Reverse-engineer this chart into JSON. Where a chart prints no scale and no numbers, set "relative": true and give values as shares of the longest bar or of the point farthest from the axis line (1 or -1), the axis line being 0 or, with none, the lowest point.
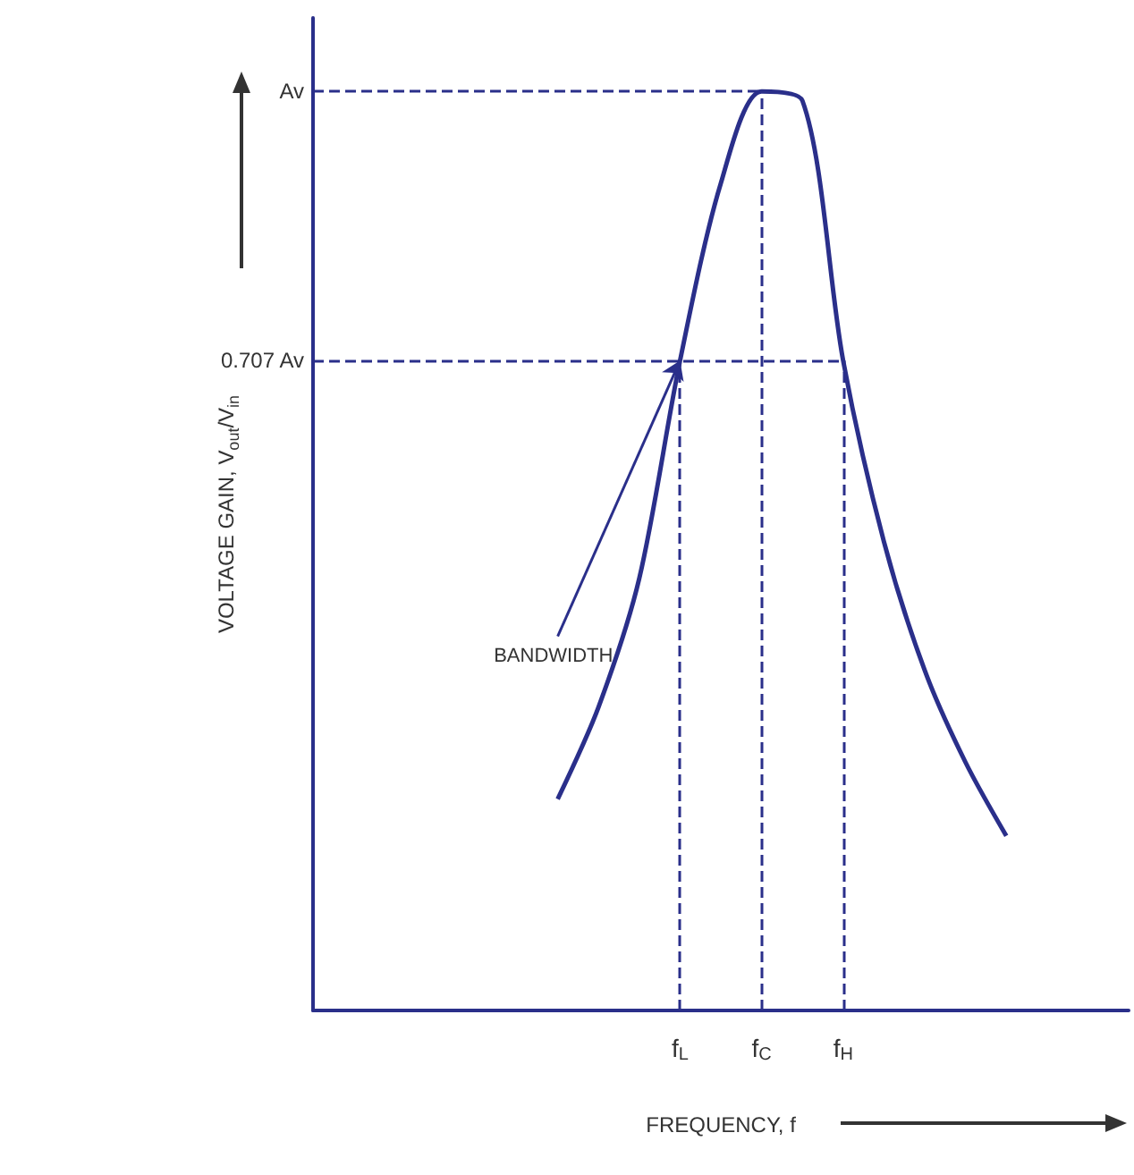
{
  "chart_data": {
    "type": "line",
    "xlabel": "FREQUENCY, f",
    "ylabel": "VOLTAGE GAIN, V$_{out}$/V$_{in}$",
    "relative": true,
    "marker": "none",
    "categories": [
      null,
      null,
      null,
      null,
      null,
      null,
      null,
      null,
      null,
      "f$_{L}$",
      null,
      "f$_{C}$",
      null,
      "f$_{H}$",
      null,
      null,
      null,
      null,
      null,
      null,
      null
    ],
    "series": [
      {
        "color": "#2a2f8a",
        "values": [
          null,
          null,
          null,
          null,
          null,
          null,
          0.23,
          0.33,
          0.47,
          0.707,
          0.9,
          1,
          0.99,
          0.707,
          0.51,
          0.37,
          0.27,
          0.19,
          null,
          null,
          null
        ]
      }
    ],
    "ref_lines": [
      {
        "axis": "y",
        "value": 1,
        "label": "Av",
        "line_style": "dashed"
      },
      {
        "axis": "y",
        "value": 0.707,
        "label": "0.707 Av",
        "line_style": "dashed"
      },
      {
        "axis": "x",
        "value": "f$_{L}$",
        "line_style": "dashed"
      },
      {
        "axis": "x",
        "value": "f$_{C}$",
        "line_style": "dashed"
      },
      {
        "axis": "x",
        "value": "f$_{H}$",
        "line_style": "dashed"
      }
    ],
    "annotations": [
      {
        "text": "BANDWIDTH",
        "x": "f$_{L}$",
        "y": 0.707
      }
    ]
  }
}
